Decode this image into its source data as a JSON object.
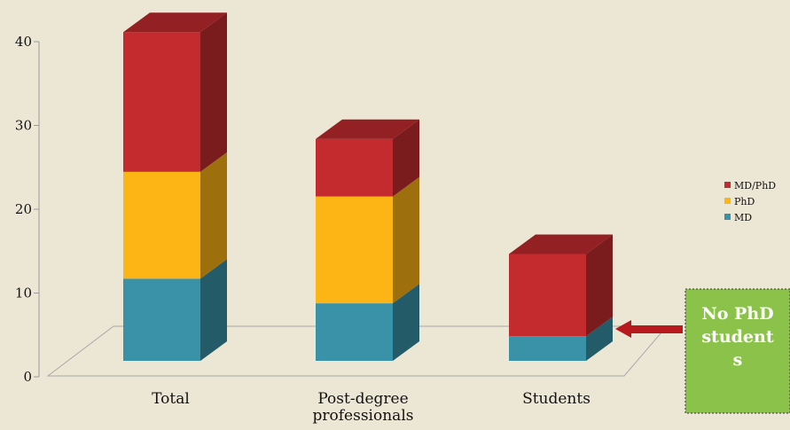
{
  "chart_data": {
    "type": "bar",
    "stacked": true,
    "style": "3d",
    "categories": [
      "Total",
      "Post-degree professionals",
      "Students"
    ],
    "series": [
      {
        "name": "MD",
        "values": [
          10,
          7,
          3
        ],
        "color": "#3a92a8"
      },
      {
        "name": "PhD",
        "values": [
          13,
          13,
          0
        ],
        "color": "#fdb515"
      },
      {
        "name": "MD/PhD",
        "values": [
          17,
          7,
          10
        ],
        "color": "#c42b2f"
      }
    ],
    "ylim": [
      0,
      40
    ],
    "yticks": [
      0,
      10,
      20,
      30,
      40
    ],
    "legend_position": "right",
    "callout": {
      "lines": [
        "No PhD",
        "student",
        "s"
      ],
      "points_to": "Students",
      "fill": "#8bc34a",
      "arrow_color": "#b8191c"
    }
  }
}
